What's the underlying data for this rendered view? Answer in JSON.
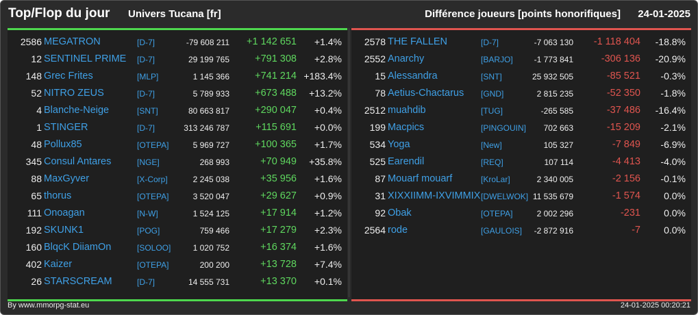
{
  "header": {
    "title": "Top/Flop du jour",
    "universe": "Univers Tucana [fr]",
    "metric": "Différence joueurs [points honorifiques]",
    "date": "24-01-2025"
  },
  "top": [
    {
      "rank": "2586",
      "name": "MEGATRON",
      "guild": "[D-7]",
      "points": "-79 608 211",
      "diff": "+1 142 651",
      "pct": "+1.4%"
    },
    {
      "rank": "12",
      "name": "SENTINEL PRIME",
      "guild": "[D-7]",
      "points": "29 199 765",
      "diff": "+791 308",
      "pct": "+2.8%"
    },
    {
      "rank": "148",
      "name": "Grec Frites",
      "guild": "[MLP]",
      "points": "1 145 366",
      "diff": "+741 214",
      "pct": "+183.4%"
    },
    {
      "rank": "52",
      "name": "NITRO ZEUS",
      "guild": "[D-7]",
      "points": "5 789 933",
      "diff": "+673 488",
      "pct": "+13.2%"
    },
    {
      "rank": "4",
      "name": "Blanche-Neige",
      "guild": "[SNT]",
      "points": "80 663 817",
      "diff": "+290 047",
      "pct": "+0.4%"
    },
    {
      "rank": "1",
      "name": "STINGER",
      "guild": "[D-7]",
      "points": "313 246 787",
      "diff": "+115 691",
      "pct": "+0.0%"
    },
    {
      "rank": "48",
      "name": "Pollux85",
      "guild": "[OTEPA]",
      "points": "5 969 727",
      "diff": "+100 365",
      "pct": "+1.7%"
    },
    {
      "rank": "345",
      "name": "Consul Antares",
      "guild": "[NGE]",
      "points": "268 993",
      "diff": "+70 949",
      "pct": "+35.8%"
    },
    {
      "rank": "88",
      "name": "MaxGyver",
      "guild": "[X-Corp]",
      "points": "2 245 038",
      "diff": "+35 956",
      "pct": "+1.6%"
    },
    {
      "rank": "65",
      "name": "thorus",
      "guild": "[OTEPA]",
      "points": "3 520 047",
      "diff": "+29 627",
      "pct": "+0.9%"
    },
    {
      "rank": "111",
      "name": "Onoagan",
      "guild": "[N-W]",
      "points": "1 524 125",
      "diff": "+17 914",
      "pct": "+1.2%"
    },
    {
      "rank": "192",
      "name": "SKUNK1",
      "guild": "[POG]",
      "points": "759 466",
      "diff": "+17 279",
      "pct": "+2.3%"
    },
    {
      "rank": "160",
      "name": "BlqcK DiiamOn",
      "guild": "[SOLOO]",
      "points": "1 020 752",
      "diff": "+16 374",
      "pct": "+1.6%"
    },
    {
      "rank": "402",
      "name": "Kaizer",
      "guild": "[OTEPA]",
      "points": "200 200",
      "diff": "+13 728",
      "pct": "+7.4%"
    },
    {
      "rank": "26",
      "name": "STARSCREAM",
      "guild": "[D-7]",
      "points": "14 555 731",
      "diff": "+13 370",
      "pct": "+0.1%"
    }
  ],
  "flop": [
    {
      "rank": "2578",
      "name": "THE FALLEN",
      "guild": "[D-7]",
      "points": "-7 063 130",
      "diff": "-1 118 404",
      "pct": "-18.8%"
    },
    {
      "rank": "2552",
      "name": "Anarchy",
      "guild": "[BARJO]",
      "points": "-1 773 841",
      "diff": "-306 136",
      "pct": "-20.9%"
    },
    {
      "rank": "15",
      "name": "Alessandra",
      "guild": "[SNT]",
      "points": "25 932 505",
      "diff": "-85 521",
      "pct": "-0.3%"
    },
    {
      "rank": "78",
      "name": "Aetius-Chactarus",
      "guild": "[GND]",
      "points": "2 815 235",
      "diff": "-52 350",
      "pct": "-1.8%"
    },
    {
      "rank": "2512",
      "name": "muahdib",
      "guild": "[TUG]",
      "points": "-265 585",
      "diff": "-37 486",
      "pct": "-16.4%"
    },
    {
      "rank": "199",
      "name": "Macpics",
      "guild": "[PINGOUIN]",
      "points": "702 663",
      "diff": "-15 209",
      "pct": "-2.1%"
    },
    {
      "rank": "534",
      "name": "Yoga",
      "guild": "[New]",
      "points": "105 327",
      "diff": "-7 849",
      "pct": "-6.9%"
    },
    {
      "rank": "525",
      "name": "Earendil",
      "guild": "[REQ]",
      "points": "107 114",
      "diff": "-4 413",
      "pct": "-4.0%"
    },
    {
      "rank": "87",
      "name": "Mouarf mouarf",
      "guild": "[KroLar]",
      "points": "2 340 005",
      "diff": "-2 156",
      "pct": "-0.1%"
    },
    {
      "rank": "31",
      "name": "XIXXIIMM-IXVIMMIX",
      "guild": "[DWELWOK]",
      "points": "11 535 679",
      "diff": "-1 574",
      "pct": "0.0%"
    },
    {
      "rank": "92",
      "name": "Obak",
      "guild": "[OTEPA]",
      "points": "2 002 296",
      "diff": "-231",
      "pct": "0.0%"
    },
    {
      "rank": "2564",
      "name": "rode",
      "guild": "[GAULOIS]",
      "points": "-2 872 916",
      "diff": "-7",
      "pct": "0.0%"
    }
  ],
  "footer": {
    "credit": "By www.mmorpg-stat.eu",
    "timestamp": "24-01-2025 00:20:21"
  },
  "colors": {
    "background": "#2b2b2b",
    "panel": "#1f1f1f",
    "name_link": "#3fa0e6",
    "gain": "#5fd85f",
    "loss": "#e0554f"
  }
}
